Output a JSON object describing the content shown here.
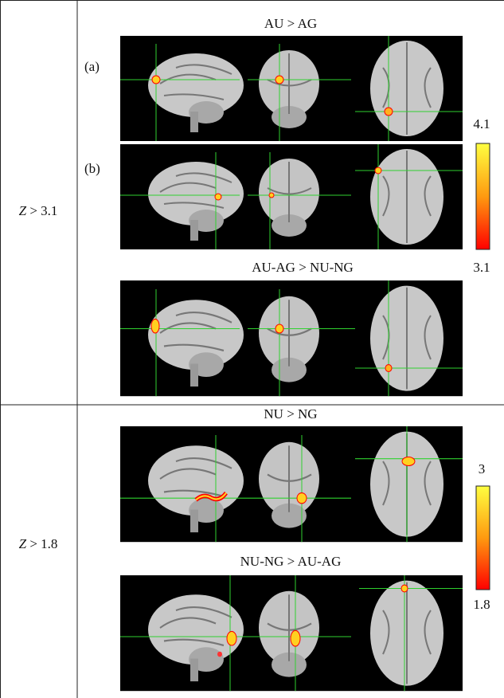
{
  "rows": [
    {
      "threshold": {
        "variable": "Z",
        "relation": "> 3.1"
      },
      "panels": [
        {
          "title": "AU > AG",
          "subpanels": [
            "(a)",
            "(b)"
          ]
        },
        {
          "title": "AU-AG > NU-NG"
        }
      ],
      "colorbar": {
        "max": 4.1,
        "min": 3.1
      }
    },
    {
      "threshold": {
        "variable": "Z",
        "relation": "> 1.8"
      },
      "panels": [
        {
          "title": "NU > NG"
        },
        {
          "title": "NU-NG > AU-AG"
        }
      ],
      "colorbar": {
        "max": 3,
        "min": 1.8
      }
    }
  ]
}
